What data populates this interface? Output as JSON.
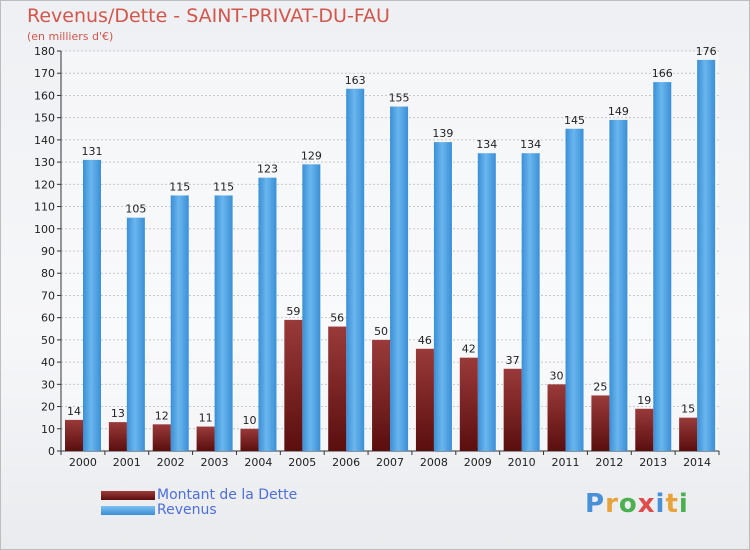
{
  "header": {
    "title": "Revenus/Dette - SAINT-PRIVAT-DU-FAU",
    "subtitle": "(en milliers d'€)"
  },
  "chart_data": {
    "type": "bar",
    "categories": [
      "2000",
      "2001",
      "2002",
      "2003",
      "2004",
      "2005",
      "2006",
      "2007",
      "2008",
      "2009",
      "2010",
      "2011",
      "2012",
      "2013",
      "2014"
    ],
    "series": [
      {
        "name": "Montant de la Dette",
        "color": "#7a1a1a",
        "values": [
          14,
          13,
          12,
          11,
          10,
          59,
          56,
          50,
          46,
          42,
          37,
          30,
          25,
          19,
          15
        ]
      },
      {
        "name": "Revenus",
        "color": "#4aa0e2",
        "values": [
          131,
          105,
          115,
          115,
          123,
          129,
          163,
          155,
          139,
          134,
          134,
          145,
          149,
          166,
          176
        ]
      }
    ],
    "ylim": [
      0,
      180
    ],
    "ytick_step": 10,
    "grid": true,
    "legend_position": "bottom-left"
  },
  "legend": {
    "items": [
      {
        "label": "Montant de la Dette",
        "color": "#7a1a1a"
      },
      {
        "label": "Revenus",
        "color": "#4aa0e2"
      }
    ]
  },
  "logo": {
    "letters": [
      "P",
      "r",
      "o",
      "x",
      "i",
      "t",
      "i"
    ],
    "colors": [
      "#4a90d9",
      "#e8a33a",
      "#4caf50",
      "#e04b4b",
      "#4a90d9",
      "#e8a33a",
      "#4caf50"
    ]
  }
}
